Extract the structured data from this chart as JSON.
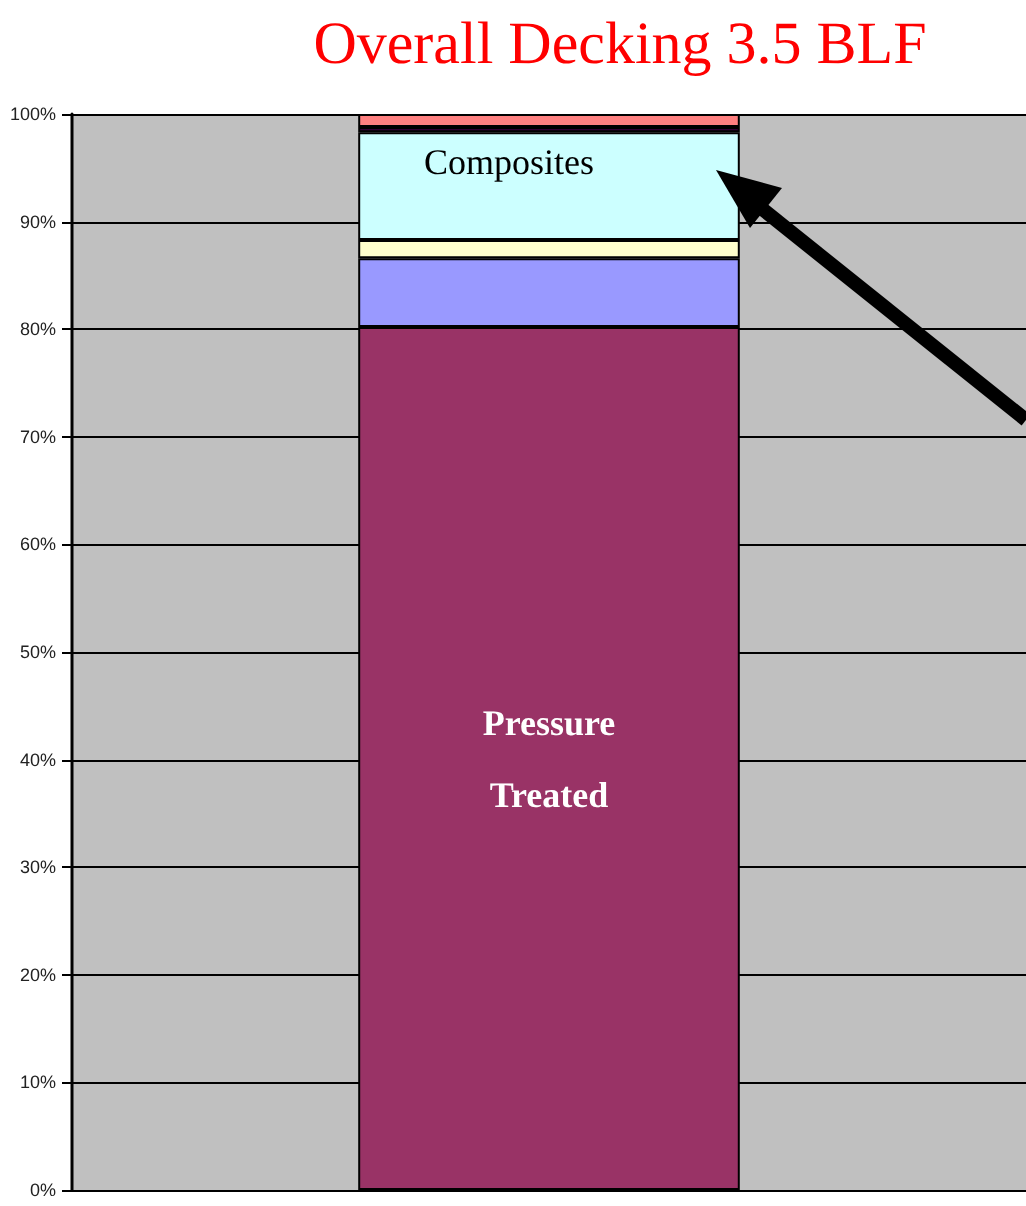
{
  "chart_data": {
    "type": "bar",
    "title": "Overall Decking 3.5 BLF",
    "stacked": true,
    "categories": [
      null
    ],
    "series": [
      {
        "name": "Pressure Treated",
        "color": "#993366",
        "values": [
          80.2
        ]
      },
      {
        "color": "#9999ff",
        "values": [
          6.4
        ]
      },
      {
        "color": "#ffffcc",
        "values": [
          1.7
        ]
      },
      {
        "name": "Composites",
        "color": "#ccffff",
        "values": [
          10
        ]
      },
      {
        "color": "#330033",
        "values": [
          0.5
        ]
      },
      {
        "color": "#ff8080",
        "values": [
          1.2
        ]
      }
    ],
    "ylim": [
      0,
      100
    ],
    "yticks": [
      {
        "value": 0,
        "label": "0%"
      },
      {
        "value": 10,
        "label": "10%"
      },
      {
        "value": 20,
        "label": "20%"
      },
      {
        "value": 30,
        "label": "30%"
      },
      {
        "value": 40,
        "label": "40%"
      },
      {
        "value": 50,
        "label": "50%"
      },
      {
        "value": 60,
        "label": "60%"
      },
      {
        "value": 70,
        "label": "70%"
      },
      {
        "value": 80,
        "label": "80%"
      },
      {
        "value": 90,
        "label": "90%"
      },
      {
        "value": 100,
        "label": "100%"
      }
    ],
    "grid": "y",
    "legend": false
  }
}
